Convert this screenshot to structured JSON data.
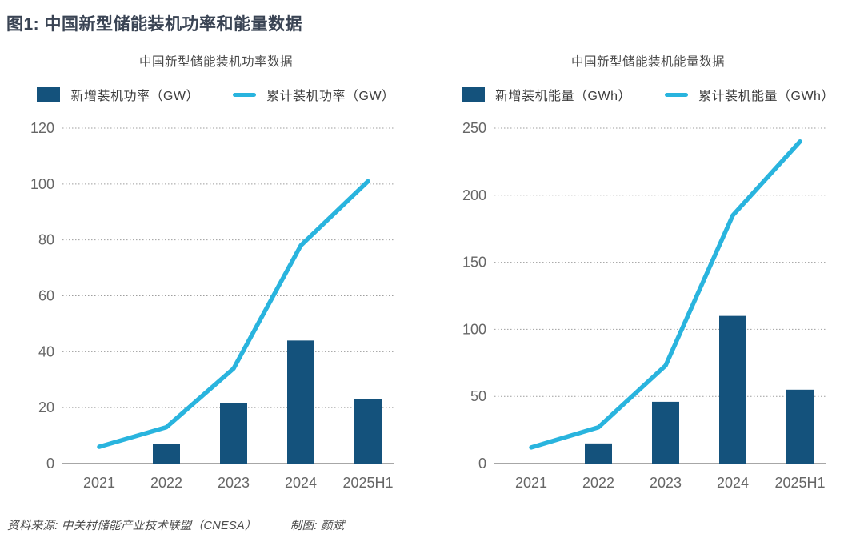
{
  "page": {
    "title": "图1: 中国新型储能装机功率和能量数据",
    "source": "资料来源: 中关村储能产业技术联盟（CNESA）",
    "credit": "制图: 颜斌"
  },
  "colors": {
    "bar": "#14527c",
    "line": "#29b4de",
    "grid": "#9e9e9e",
    "axis": "#8a8a8a",
    "tick_text": "#666666",
    "title_text": "#3a4454"
  },
  "chart_data": [
    {
      "type": "bar",
      "title": "中国新型储能装机功率数据",
      "categories": [
        "2021",
        "2022",
        "2023",
        "2024",
        "2025H1"
      ],
      "series": [
        {
          "name": "新增装机功率（GW）",
          "type": "bar",
          "values": [
            0,
            7,
            21.5,
            44,
            23
          ]
        },
        {
          "name": "累计装机功率（GW）",
          "type": "line",
          "values": [
            6,
            13,
            34,
            78,
            101
          ]
        }
      ],
      "xlabel": "",
      "ylabel": "",
      "ylim": [
        0,
        120
      ],
      "yticks": [
        0,
        20,
        40,
        60,
        80,
        100,
        120
      ],
      "grid": true,
      "legend_position": "top"
    },
    {
      "type": "bar",
      "title": "中国新型储能装机能量数据",
      "categories": [
        "2021",
        "2022",
        "2023",
        "2024",
        "2025H1"
      ],
      "series": [
        {
          "name": "新增装机能量（GWh）",
          "type": "bar",
          "values": [
            0,
            15,
            46,
            110,
            55
          ]
        },
        {
          "name": "累计装机能量（GWh）",
          "type": "line",
          "values": [
            12,
            27,
            73,
            185,
            240
          ]
        }
      ],
      "xlabel": "",
      "ylabel": "",
      "ylim": [
        0,
        250
      ],
      "yticks": [
        0,
        50,
        100,
        150,
        200,
        250
      ],
      "grid": true,
      "legend_position": "top"
    }
  ]
}
